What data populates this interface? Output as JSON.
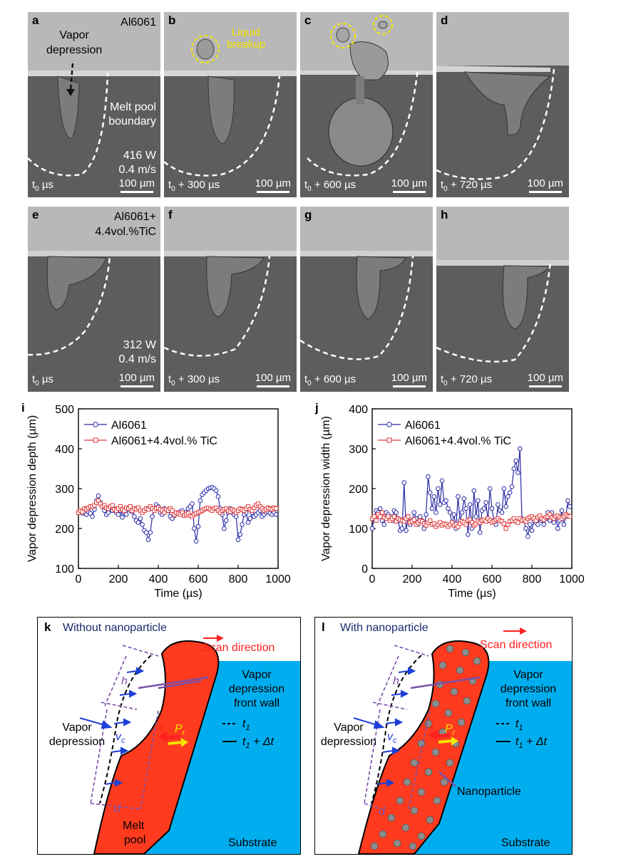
{
  "panels": {
    "a": {
      "letter": "a",
      "time": "t",
      "time_suffix": "  µs",
      "material": "Al6061",
      "ann1": "Vapor",
      "ann2": "depression",
      "ann3": "Melt pool",
      "ann4": "boundary",
      "power": "416 W",
      "speed": "0.4 m/s",
      "scale": "100 µm"
    },
    "b": {
      "letter": "b",
      "time": "t",
      "time_suffix": " + 300 µs",
      "ann1": "Liquid",
      "ann2": "breakup",
      "scale": "100 µm"
    },
    "c": {
      "letter": "c",
      "time": "t",
      "time_suffix": " + 600 µs",
      "scale": "100 µm"
    },
    "d": {
      "letter": "d",
      "time": "t",
      "time_suffix": " + 720 µs",
      "scale": "100 µm"
    },
    "e": {
      "letter": "e",
      "time": "t",
      "time_suffix": "  µs",
      "material1": "Al6061+",
      "material2": "4.4vol.%TiC",
      "power": "312 W",
      "speed": "0.4 m/s",
      "scale": "100 µm"
    },
    "f": {
      "letter": "f",
      "time": "t",
      "time_suffix": " + 300 µs",
      "scale": "100 µm"
    },
    "g": {
      "letter": "g",
      "time": "t",
      "time_suffix": " + 600 µs",
      "scale": "100 µm"
    },
    "h": {
      "letter": "h",
      "time": "t",
      "time_suffix": " + 720 µs",
      "scale": "100 µm"
    },
    "time_subscript": "0"
  },
  "chart_data": [
    {
      "panel": "i",
      "type": "line",
      "xlabel": "Time (µs)",
      "ylabel": "Vapor depression depth (µm)",
      "xlim": [
        0,
        1000
      ],
      "ylim": [
        100,
        500
      ],
      "xticks": [
        0,
        200,
        400,
        600,
        800,
        1000
      ],
      "yticks": [
        100,
        200,
        300,
        400,
        500
      ],
      "legend_position": "top-left",
      "series": [
        {
          "name": "Al6061",
          "color": "#2a2aa8",
          "marker": "circle",
          "x": [
            0,
            10,
            20,
            30,
            40,
            50,
            60,
            70,
            80,
            90,
            100,
            110,
            120,
            130,
            140,
            150,
            160,
            170,
            180,
            190,
            200,
            210,
            220,
            230,
            240,
            250,
            260,
            270,
            280,
            290,
            300,
            310,
            320,
            330,
            340,
            350,
            360,
            370,
            380,
            390,
            400,
            410,
            420,
            430,
            440,
            450,
            460,
            470,
            480,
            490,
            500,
            510,
            520,
            530,
            540,
            550,
            560,
            570,
            580,
            590,
            600,
            610,
            620,
            630,
            640,
            650,
            660,
            670,
            680,
            690,
            700,
            710,
            720,
            730,
            740,
            750,
            760,
            770,
            780,
            790,
            800,
            810,
            820,
            830,
            840,
            850,
            860,
            870,
            880,
            890,
            900,
            910,
            920,
            930,
            940,
            950,
            960,
            970,
            980,
            990
          ],
          "y": [
            240,
            245,
            238,
            240,
            235,
            242,
            238,
            230,
            248,
            270,
            282,
            265,
            255,
            245,
            235,
            240,
            248,
            245,
            250,
            240,
            235,
            245,
            228,
            240,
            235,
            250,
            245,
            242,
            230,
            220,
            215,
            225,
            210,
            195,
            190,
            172,
            190,
            230,
            250,
            260,
            255,
            240,
            235,
            250,
            245,
            245,
            230,
            225,
            232,
            240,
            238,
            242,
            245,
            235,
            240,
            250,
            255,
            262,
            200,
            168,
            205,
            270,
            285,
            290,
            295,
            300,
            302,
            303,
            300,
            295,
            280,
            250,
            235,
            200,
            220,
            240,
            250,
            240,
            235,
            230,
            172,
            185,
            210,
            235,
            240,
            215,
            225,
            240,
            230,
            235,
            240,
            245,
            230,
            235,
            240,
            242,
            238,
            235,
            240,
            235
          ]
        },
        {
          "name": "Al6061+4.4vol.% TiC",
          "color": "#e23b3b",
          "marker": "square",
          "x": [
            0,
            10,
            20,
            30,
            40,
            50,
            60,
            70,
            80,
            90,
            100,
            110,
            120,
            130,
            140,
            150,
            160,
            170,
            180,
            190,
            200,
            210,
            220,
            230,
            240,
            250,
            260,
            270,
            280,
            290,
            300,
            310,
            320,
            330,
            340,
            350,
            360,
            370,
            380,
            390,
            400,
            410,
            420,
            430,
            440,
            450,
            460,
            470,
            480,
            490,
            500,
            510,
            520,
            530,
            540,
            550,
            560,
            570,
            580,
            590,
            600,
            610,
            620,
            630,
            640,
            650,
            660,
            670,
            680,
            690,
            700,
            710,
            720,
            730,
            740,
            750,
            760,
            770,
            780,
            790,
            800,
            810,
            820,
            830,
            840,
            850,
            860,
            870,
            880,
            890,
            900,
            910,
            920,
            930,
            940,
            950,
            960,
            970,
            980,
            990
          ],
          "y": [
            240,
            245,
            242,
            250,
            248,
            252,
            255,
            255,
            258,
            265,
            270,
            262,
            255,
            258,
            252,
            250,
            255,
            258,
            248,
            245,
            250,
            255,
            248,
            245,
            252,
            250,
            255,
            245,
            250,
            248,
            252,
            245,
            240,
            245,
            250,
            248,
            255,
            250,
            245,
            250,
            252,
            248,
            245,
            240,
            248,
            245,
            250,
            245,
            235,
            240,
            238,
            235,
            240,
            232,
            235,
            238,
            232,
            230,
            235,
            238,
            240,
            242,
            245,
            248,
            250,
            252,
            248,
            245,
            250,
            252,
            245,
            240,
            245,
            248,
            250,
            245,
            242,
            248,
            245,
            240,
            245,
            250,
            248,
            245,
            250,
            255,
            248,
            245,
            252,
            258,
            262,
            255,
            250,
            245,
            248,
            252,
            250,
            248,
            252,
            250
          ]
        }
      ]
    },
    {
      "panel": "j",
      "type": "line",
      "xlabel": "Time (µs)",
      "ylabel": "Vapor depression width (µm)",
      "xlim": [
        0,
        1000
      ],
      "ylim": [
        0,
        400
      ],
      "xticks": [
        0,
        200,
        400,
        600,
        800,
        1000
      ],
      "yticks": [
        0,
        100,
        200,
        300,
        400
      ],
      "legend_position": "top-left",
      "series": [
        {
          "name": "Al6061",
          "color": "#2a2aa8",
          "marker": "circle",
          "x": [
            0,
            10,
            20,
            30,
            40,
            50,
            60,
            70,
            80,
            90,
            100,
            110,
            120,
            130,
            140,
            150,
            160,
            170,
            180,
            190,
            200,
            210,
            220,
            230,
            240,
            250,
            260,
            270,
            280,
            290,
            300,
            310,
            320,
            330,
            340,
            350,
            360,
            370,
            380,
            390,
            400,
            410,
            420,
            430,
            440,
            450,
            460,
            470,
            480,
            490,
            500,
            510,
            520,
            530,
            540,
            550,
            560,
            570,
            580,
            590,
            600,
            610,
            620,
            630,
            640,
            650,
            660,
            670,
            680,
            690,
            700,
            710,
            720,
            730,
            740,
            750,
            760,
            770,
            780,
            790,
            800,
            810,
            820,
            830,
            840,
            850,
            860,
            870,
            880,
            890,
            900,
            910,
            920,
            930,
            940,
            950,
            960,
            970,
            980,
            990
          ],
          "y": [
            100,
            125,
            145,
            140,
            150,
            120,
            110,
            140,
            135,
            130,
            120,
            145,
            140,
            120,
            95,
            100,
            215,
            95,
            130,
            110,
            120,
            140,
            125,
            110,
            130,
            120,
            100,
            135,
            230,
            190,
            150,
            180,
            140,
            200,
            160,
            220,
            165,
            170,
            150,
            140,
            110,
            135,
            100,
            180,
            120,
            140,
            175,
            150,
            85,
            160,
            100,
            195,
            130,
            170,
            90,
            145,
            150,
            165,
            120,
            200,
            150,
            120,
            110,
            160,
            145,
            140,
            200,
            155,
            180,
            190,
            205,
            250,
            270,
            240,
            300,
            125,
            120,
            100,
            80,
            110,
            95,
            120,
            115,
            110,
            130,
            120,
            110,
            125,
            140,
            120,
            140,
            115,
            130,
            100,
            120,
            145,
            110,
            130,
            170,
            155
          ]
        },
        {
          "name": "Al6061+4.4vol.% TiC",
          "color": "#e23b3b",
          "marker": "square",
          "x": [
            0,
            10,
            20,
            30,
            40,
            50,
            60,
            70,
            80,
            90,
            100,
            110,
            120,
            130,
            140,
            150,
            160,
            170,
            180,
            190,
            200,
            210,
            220,
            230,
            240,
            250,
            260,
            270,
            280,
            290,
            300,
            310,
            320,
            330,
            340,
            350,
            360,
            370,
            380,
            390,
            400,
            410,
            420,
            430,
            440,
            450,
            460,
            470,
            480,
            490,
            500,
            510,
            520,
            530,
            540,
            550,
            560,
            570,
            580,
            590,
            600,
            610,
            620,
            630,
            640,
            650,
            660,
            670,
            680,
            690,
            700,
            710,
            720,
            730,
            740,
            750,
            760,
            770,
            780,
            790,
            800,
            810,
            820,
            830,
            840,
            850,
            860,
            870,
            880,
            890,
            900,
            910,
            920,
            930,
            940,
            950,
            960,
            970,
            980,
            990
          ],
          "y": [
            125,
            130,
            120,
            135,
            130,
            140,
            128,
            125,
            130,
            120,
            125,
            130,
            118,
            125,
            122,
            120,
            118,
            125,
            130,
            115,
            118,
            122,
            110,
            115,
            120,
            118,
            112,
            108,
            115,
            120,
            110,
            112,
            105,
            110,
            115,
            108,
            112,
            110,
            105,
            110,
            115,
            108,
            110,
            105,
            112,
            118,
            115,
            110,
            120,
            122,
            115,
            108,
            112,
            118,
            115,
            120,
            122,
            118,
            125,
            120,
            115,
            118,
            122,
            125,
            120,
            118,
            112,
            100,
            110,
            118,
            120,
            125,
            118,
            115,
            125,
            120,
            122,
            118,
            125,
            128,
            130,
            125,
            120,
            128,
            132,
            125,
            122,
            128,
            130,
            135,
            128,
            125,
            130,
            132,
            128,
            125,
            130,
            135,
            132,
            130
          ]
        }
      ]
    }
  ],
  "schematics": {
    "k": {
      "letter": "k",
      "title": "Without nanoparticle",
      "scan": "Scan direction",
      "wall1": "Vapor",
      "wall2": "depression",
      "wall3": "front wall",
      "t1": "t",
      "t1_sub": "1",
      "t2": "t",
      "t2_sub": "1",
      "t2_suffix": " + Δt",
      "vd1": "Vapor",
      "vd2": "depression",
      "h": "h",
      "vc": "v",
      "vc_sub": "c",
      "tau": "τ",
      "pr": "P",
      "pr_sub": "r",
      "d": "d",
      "melt1": "Melt",
      "melt2": "pool",
      "substrate": "Substrate"
    },
    "l": {
      "letter": "l",
      "title": "With nanoparticle",
      "scan": "Scan direction",
      "wall1": "Vapor",
      "wall2": "depression",
      "wall3": "front wall",
      "t1": "t",
      "t1_sub": "1",
      "t2": "t",
      "t2_sub": "1",
      "t2_suffix": " + Δt",
      "vd1": "Vapor",
      "vd2": "depression",
      "h": "h",
      "vc": "v",
      "vc_sub": "c",
      "tau": "τ",
      "pr": "P",
      "pr_sub": "r",
      "d": "d",
      "nano": "Nanoparticle",
      "substrate": "Substrate"
    }
  },
  "colors": {
    "substrate": "#00aeef",
    "melt": "#ff3b1f",
    "al6061": "#2a2aa8",
    "tic": "#e23b3b",
    "purple": "#7b4fa8",
    "arrow_blue": "#1c3fd6",
    "title_navy": "#1a2a6c"
  }
}
